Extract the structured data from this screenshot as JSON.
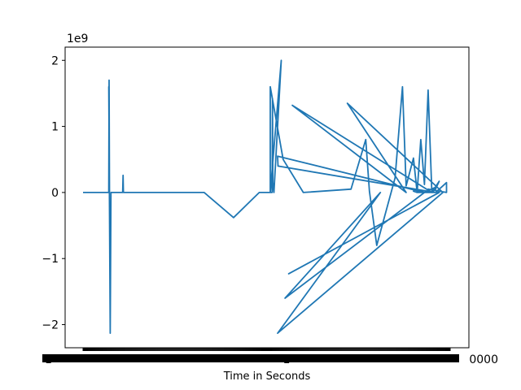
{
  "chart_data": {
    "type": "line",
    "title": "",
    "xlabel": "Time in Seconds",
    "ylabel": "",
    "y_offset_label": "1e9",
    "ylim": [
      -2.35,
      2.2
    ],
    "y_ticks": [
      -2,
      -1,
      0,
      1,
      2
    ],
    "y_tick_labels": [
      "−2",
      "−1",
      "0",
      "1",
      "2"
    ],
    "x_tick_labels_note": "dense overlapping tick labels",
    "x_tick_labels": [
      "1",
      "1",
      "0000"
    ],
    "xlim": [
      0,
      100
    ],
    "grid": false,
    "legend": "none",
    "series": [
      {
        "color": "#1f77b4",
        "x": [
          0,
          7,
          7.1,
          7.2,
          7.0,
          7.4,
          7.6,
          7.8,
          10.8,
          10.9,
          11,
          14,
          18,
          24,
          33,
          41,
          48,
          51.5,
          51.6,
          51.7,
          52,
          54,
          51,
          51,
          54.5,
          60,
          73,
          77,
          78,
          80,
          85,
          87,
          88,
          90,
          91,
          92,
          93,
          94,
          95,
          97,
          96,
          95,
          96,
          93,
          91,
          90,
          91,
          97,
          56,
          97,
          93,
          55,
          81,
          53,
          98,
          72,
          88,
          57,
          95,
          93,
          53,
          53.1,
          96,
          92,
          90,
          96,
          98,
          99,
          99,
          94,
          99
        ],
        "y": [
          0,
          0,
          1.7,
          0.01,
          1.6,
          -2.13,
          0.0,
          0.0,
          0.0,
          0.26,
          0.0,
          0.0,
          0.0,
          0.0,
          0.0,
          -0.38,
          0.0,
          0.0,
          1.42,
          0.15,
          0.0,
          2.0,
          0.0,
          1.6,
          0.5,
          0.0,
          0.05,
          0.8,
          0.02,
          -0.8,
          0.22,
          1.6,
          0.1,
          0.52,
          0.0,
          0.8,
          0.12,
          1.55,
          0.0,
          0.17,
          0.05,
          0.0,
          0.08,
          0.0,
          0.0,
          0.02,
          0.0,
          0.0,
          -1.23,
          0.0,
          0.0,
          -1.6,
          0.0,
          -2.13,
          0.0,
          1.35,
          0.0,
          1.32,
          0.0,
          0.0,
          0.55,
          0.4,
          0.0,
          0.0,
          0.05,
          0.0,
          0.1,
          0.15,
          0.0,
          0.05,
          0.0
        ]
      }
    ]
  }
}
